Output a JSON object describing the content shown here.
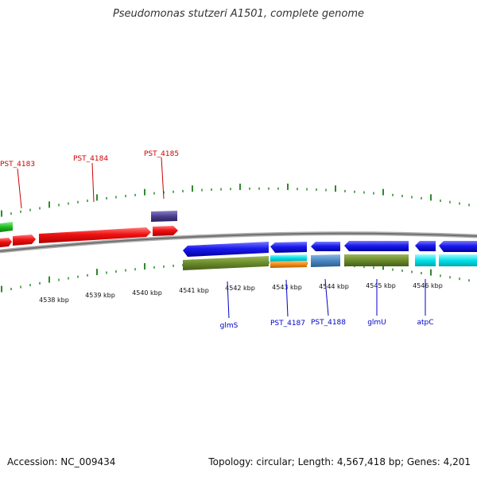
{
  "title": "Pseudomonas stutzeri A1501, complete genome",
  "accession_text": "Accession: NC_009434",
  "summary_text": "Topology: circular; Length: 4,567,418 bp; Genes: 4,201",
  "colors": {
    "forward_label": "#cc0000",
    "reverse_label": "#0000cc",
    "forward_gene": "#ee1111",
    "reverse_gene": "#1a1aee",
    "gc_tick": "#2d8a2d",
    "backbone": "#808080",
    "olive": "#6b8a2a",
    "cyan": "#00e0e8",
    "steel": "#4a86c0",
    "orange": "#f08c1c",
    "slate": "#4a3f8c",
    "green": "#22bb22"
  },
  "kbp_ticks": [
    "4538 kbp",
    "4539 kbp",
    "4540 kbp",
    "4541 kbp",
    "4542 kbp",
    "4543 kbp",
    "4544 kbp",
    "4545 kbp",
    "4546 kbp"
  ],
  "forward_labels": [
    "PST_4183",
    "PST_4184",
    "PST_4185"
  ],
  "reverse_labels": [
    "glmS",
    "PST_4187",
    "PST_4188",
    "glmU",
    "atpC"
  ]
}
